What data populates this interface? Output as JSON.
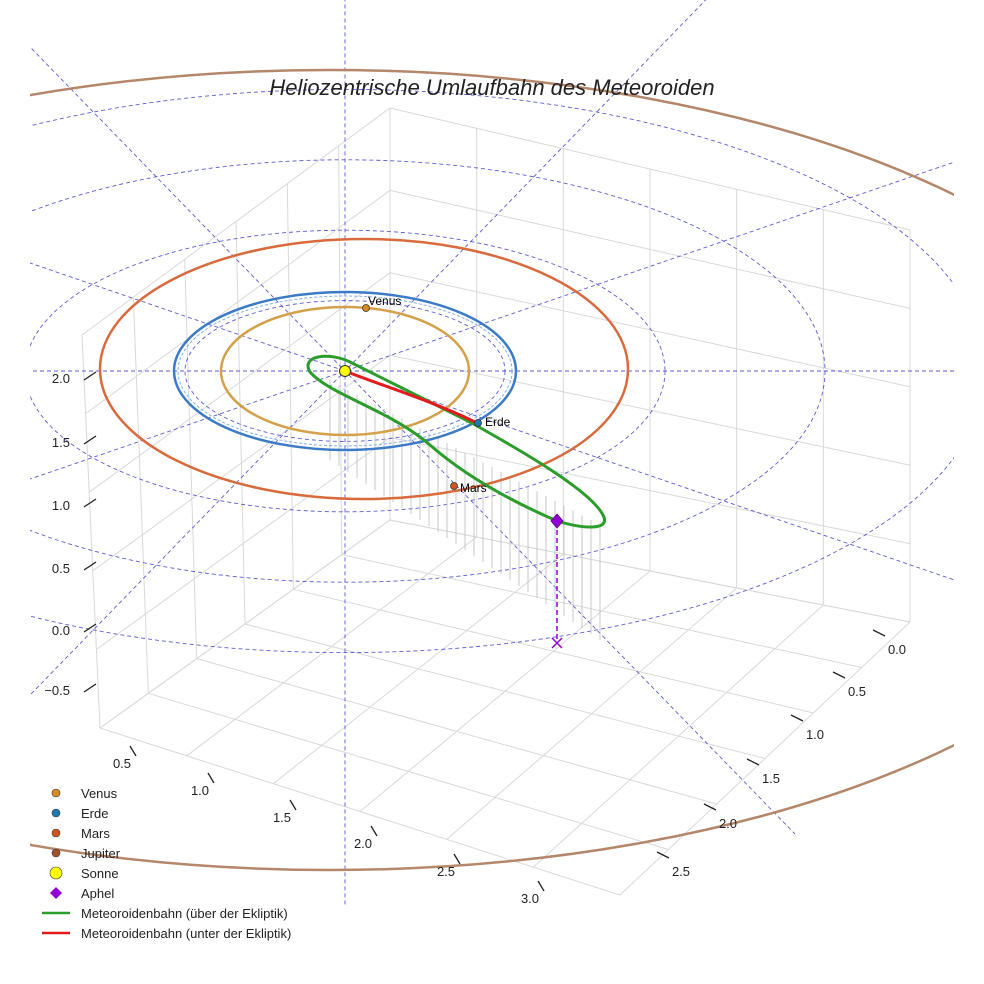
{
  "chart_data": {
    "type": "scatter3d",
    "title": "Heliozentrische Umlaufbahn des Meteoroiden",
    "z_ticks": [
      "2.0",
      "1.5",
      "1.0",
      "0.5",
      "0.0",
      "−0.5"
    ],
    "left_axis_ticks": [
      "0.5",
      "1.0",
      "1.5",
      "2.0",
      "2.5",
      "3.0"
    ],
    "right_axis_ticks": [
      "0.0",
      "0.5",
      "1.0",
      "1.5",
      "2.0",
      "2.5"
    ],
    "bodies": [
      {
        "name": "Venus",
        "color": "#d98c1e",
        "label": "Venus",
        "orbit_radius_au": 0.72,
        "orbit_color": "#d4a04a"
      },
      {
        "name": "Erde",
        "color": "#1f77b4",
        "label": "Erde",
        "orbit_radius_au": 1.0,
        "orbit_color": "#3b7ac7"
      },
      {
        "name": "Mars",
        "color": "#d2541c",
        "label": "Mars",
        "orbit_radius_au": 1.52,
        "orbit_color": "#d86a3c"
      },
      {
        "name": "Jupiter",
        "color": "#a0522d",
        "orbit_radius_au": 5.2,
        "orbit_color": "#b5876a"
      }
    ],
    "sun": {
      "name": "Sonne",
      "color": "#ffff00"
    },
    "aphel": {
      "name": "Aphel",
      "color": "#9400d3"
    },
    "meteoroid_orbit": {
      "above_ecliptic": {
        "name": "Meteoroidenbahn (über der Ekliptik)",
        "color": "#2a9d2a"
      },
      "below_ecliptic": {
        "name": "Meteoroidenbahn (unter der Ekliptik)",
        "color": "#e41a1c"
      }
    },
    "reference_grid_color": "#3333cc",
    "legend_position": "bottom-left"
  },
  "legend": [
    {
      "label": "Venus",
      "kind": "dot",
      "color": "#d98c1e"
    },
    {
      "label": "Erde",
      "kind": "dot",
      "color": "#1f77b4"
    },
    {
      "label": "Mars",
      "kind": "dot",
      "color": "#d2541c"
    },
    {
      "label": "Jupiter",
      "kind": "dot",
      "color": "#a0522d"
    },
    {
      "label": "Sonne",
      "kind": "bigdot",
      "color": "#ffff00"
    },
    {
      "label": "Aphel",
      "kind": "diamond",
      "color": "#9400d3"
    },
    {
      "label": "Meteoroidenbahn (über der Ekliptik)",
      "kind": "line",
      "color": "#2a9d2a"
    },
    {
      "label": "Meteoroidenbahn (unter der Ekliptik)",
      "kind": "line",
      "color": "#e41a1c"
    }
  ]
}
